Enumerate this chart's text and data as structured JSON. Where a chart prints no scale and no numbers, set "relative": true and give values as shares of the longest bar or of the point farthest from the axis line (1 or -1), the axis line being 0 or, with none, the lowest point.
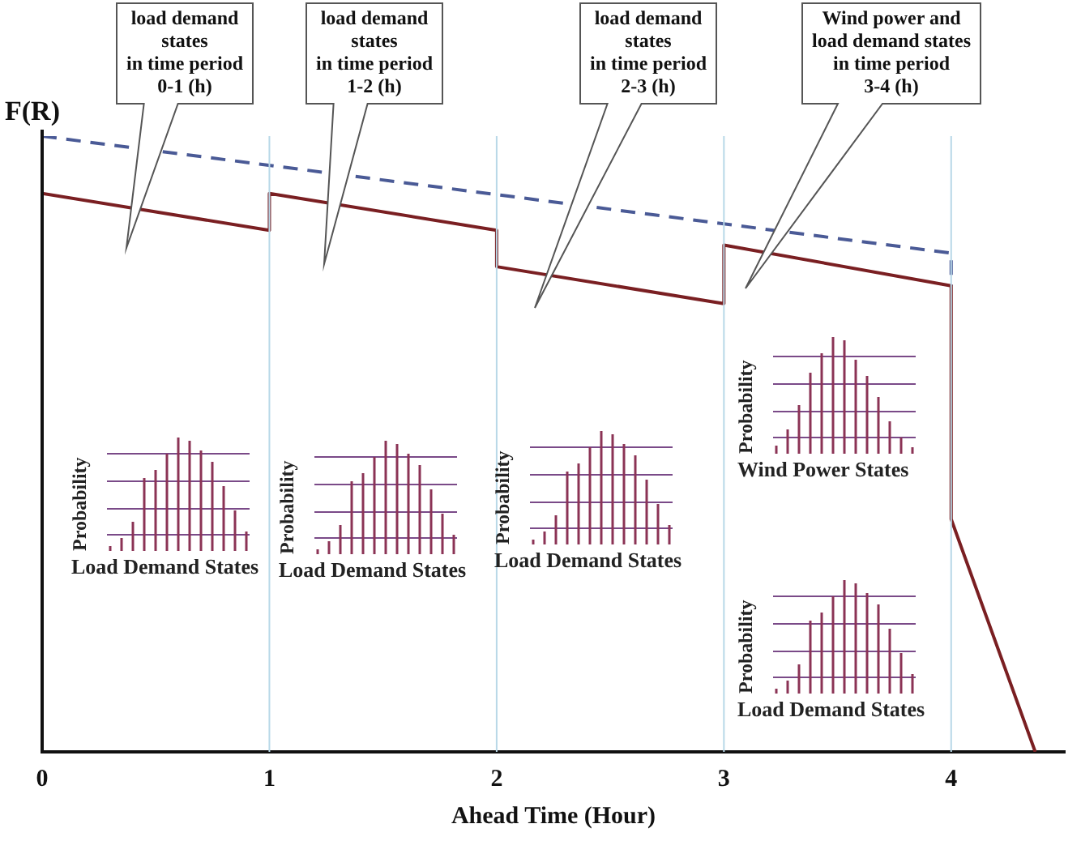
{
  "chart_data": {
    "type": "line",
    "relative": true,
    "ylabel": "F(R)",
    "xlabel": "Ahead Time (Hour)",
    "xlim": [
      0,
      4.5
    ],
    "xticks": [
      0,
      1,
      2,
      3,
      4
    ],
    "grid": false,
    "legend": false,
    "marker": "none",
    "series": [
      {
        "color": "#7a1f22",
        "line_style": "solid",
        "x": [
          0,
          1,
          1,
          2,
          2,
          3,
          3,
          4,
          4,
          4.37
        ],
        "values": [
          0.907,
          0.847,
          0.907,
          0.847,
          0.788,
          0.728,
          0.823,
          0.757,
          0.378,
          0
        ]
      },
      {
        "color": "#4a5a96",
        "line_style": "dashed",
        "x": [
          0,
          4,
          4
        ],
        "values": [
          1,
          0.81,
          0.757
        ]
      }
    ],
    "ref_lines": [
      {
        "axis": "x",
        "value": 1,
        "color": "#b8d8e8"
      },
      {
        "axis": "x",
        "value": 2,
        "color": "#b8d8e8"
      },
      {
        "axis": "x",
        "value": 3,
        "color": "#b8d8e8"
      },
      {
        "axis": "x",
        "value": 4,
        "color": "#b8d8e8"
      }
    ],
    "annotations": [
      "load demand\nstates\nin time period\n0-1 (h)",
      "load demand\nstates\nin time period\n1-2 (h)",
      "load demand\nstates\nin time period\n2-3 (h)",
      "Wind power and\nload demand states\nin time period\n3-4 (h)",
      "Probability",
      "Load Demand States",
      "Probability",
      "Load Demand States",
      "Probability",
      "Load Demand States",
      "Probability",
      "Wind Power States",
      "Probability",
      "Load Demand States"
    ]
  }
}
